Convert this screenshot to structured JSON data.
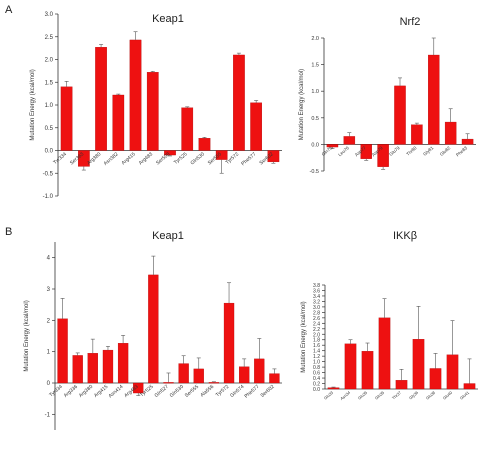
{
  "panels": {
    "a_letter": "A",
    "b_letter": "B"
  },
  "chart_data": [
    {
      "type": "bar",
      "title": "Keap1",
      "ylabel": "Mutation Energy (kcal/mol)",
      "xlabel": "",
      "ylim": [
        -1.0,
        3.0
      ],
      "yticks": [
        "-1.0",
        "-0.5",
        "0.0",
        "0.5",
        "1.0",
        "1.5",
        "2.0",
        "2.5",
        "3.0"
      ],
      "categories": [
        "Tyr334",
        "Ser363",
        "Arg380",
        "Asn382",
        "Arg415",
        "Arg483",
        "Ser508",
        "Tyr525",
        "Gln530",
        "Ser555",
        "Tyr572",
        "Phe577",
        "Ser602"
      ],
      "values": [
        1.4,
        -0.35,
        2.27,
        1.22,
        2.43,
        1.72,
        -0.1,
        0.94,
        0.27,
        -0.2,
        2.1,
        1.05,
        -0.25
      ],
      "errors": [
        0.12,
        0.08,
        0.06,
        0.02,
        0.18,
        0.02,
        0.02,
        0.02,
        0.02,
        0.3,
        0.04,
        0.05,
        0.03
      ],
      "color": "#ee1111"
    },
    {
      "type": "bar",
      "title": "Nrf2",
      "ylabel": "Mutation Energy (kcal/mol)",
      "xlabel": "",
      "ylim": [
        -0.5,
        2.0
      ],
      "yticks": [
        "-0.5",
        "0.0",
        "0.5",
        "1.0",
        "1.5",
        "2.0"
      ],
      "categories": [
        "Gln75",
        "Leu76",
        "Asp77",
        "Asp79",
        "Glu79",
        "Thr80",
        "Gly81",
        "Glu82",
        "Phe83"
      ],
      "values": [
        -0.05,
        0.15,
        -0.27,
        -0.42,
        1.1,
        0.37,
        1.68,
        0.42,
        0.1
      ],
      "errors": [
        0.03,
        0.07,
        0.03,
        0.05,
        0.15,
        0.03,
        0.32,
        0.25,
        0.1
      ],
      "color": "#ee1111"
    },
    {
      "type": "bar",
      "title": "Keap1",
      "ylabel": "Mutation Energy (kcal/mol)",
      "xlabel": "",
      "ylim": [
        -1.5,
        4.5
      ],
      "yticks": [
        "-1",
        "0",
        "1",
        "2",
        "3",
        "4"
      ],
      "categories": [
        "Tyr334",
        "Arg336",
        "Arg380",
        "Arg415",
        "Asn414",
        "Arg483",
        "Tyr525",
        "Gln527",
        "Gln530",
        "Ser555",
        "Ala556",
        "Tyr572",
        "Gln574",
        "Phe577",
        "Ser602"
      ],
      "values": [
        2.05,
        0.88,
        0.95,
        1.05,
        1.27,
        -0.32,
        3.45,
        0.02,
        0.62,
        0.45,
        0.02,
        2.55,
        0.52,
        0.77,
        0.3
      ],
      "errors": [
        0.65,
        0.08,
        0.45,
        0.12,
        0.25,
        0.08,
        0.6,
        0.3,
        0.25,
        0.35,
        0.02,
        0.65,
        0.25,
        0.65,
        0.15
      ],
      "color": "#ee1111"
    },
    {
      "type": "bar",
      "title": "IKKβ",
      "ylabel": "Mutation Energy (kcal/mol)",
      "xlabel": "",
      "ylim": [
        0.0,
        3.8
      ],
      "yticks": [
        "0.0",
        "0.2",
        "0.4",
        "0.6",
        "0.8",
        "1.0",
        "1.2",
        "1.4",
        "1.6",
        "1.8",
        "2.0",
        "2.2",
        "2.4",
        "2.6",
        "2.8",
        "3.0",
        "3.2",
        "3.4",
        "3.6",
        "3.8"
      ],
      "categories": [
        "Glu33",
        "Asn34",
        "Glu35",
        "Gln35",
        "Thr37",
        "Gly36",
        "Glu38",
        "Glu40",
        "Glu41"
      ],
      "values": [
        0.05,
        1.65,
        1.38,
        2.6,
        0.32,
        1.82,
        0.75,
        1.25,
        0.2
      ],
      "errors": [
        0.02,
        0.15,
        0.3,
        0.7,
        0.4,
        1.2,
        0.55,
        1.25,
        0.9
      ],
      "color": "#ee1111"
    }
  ]
}
